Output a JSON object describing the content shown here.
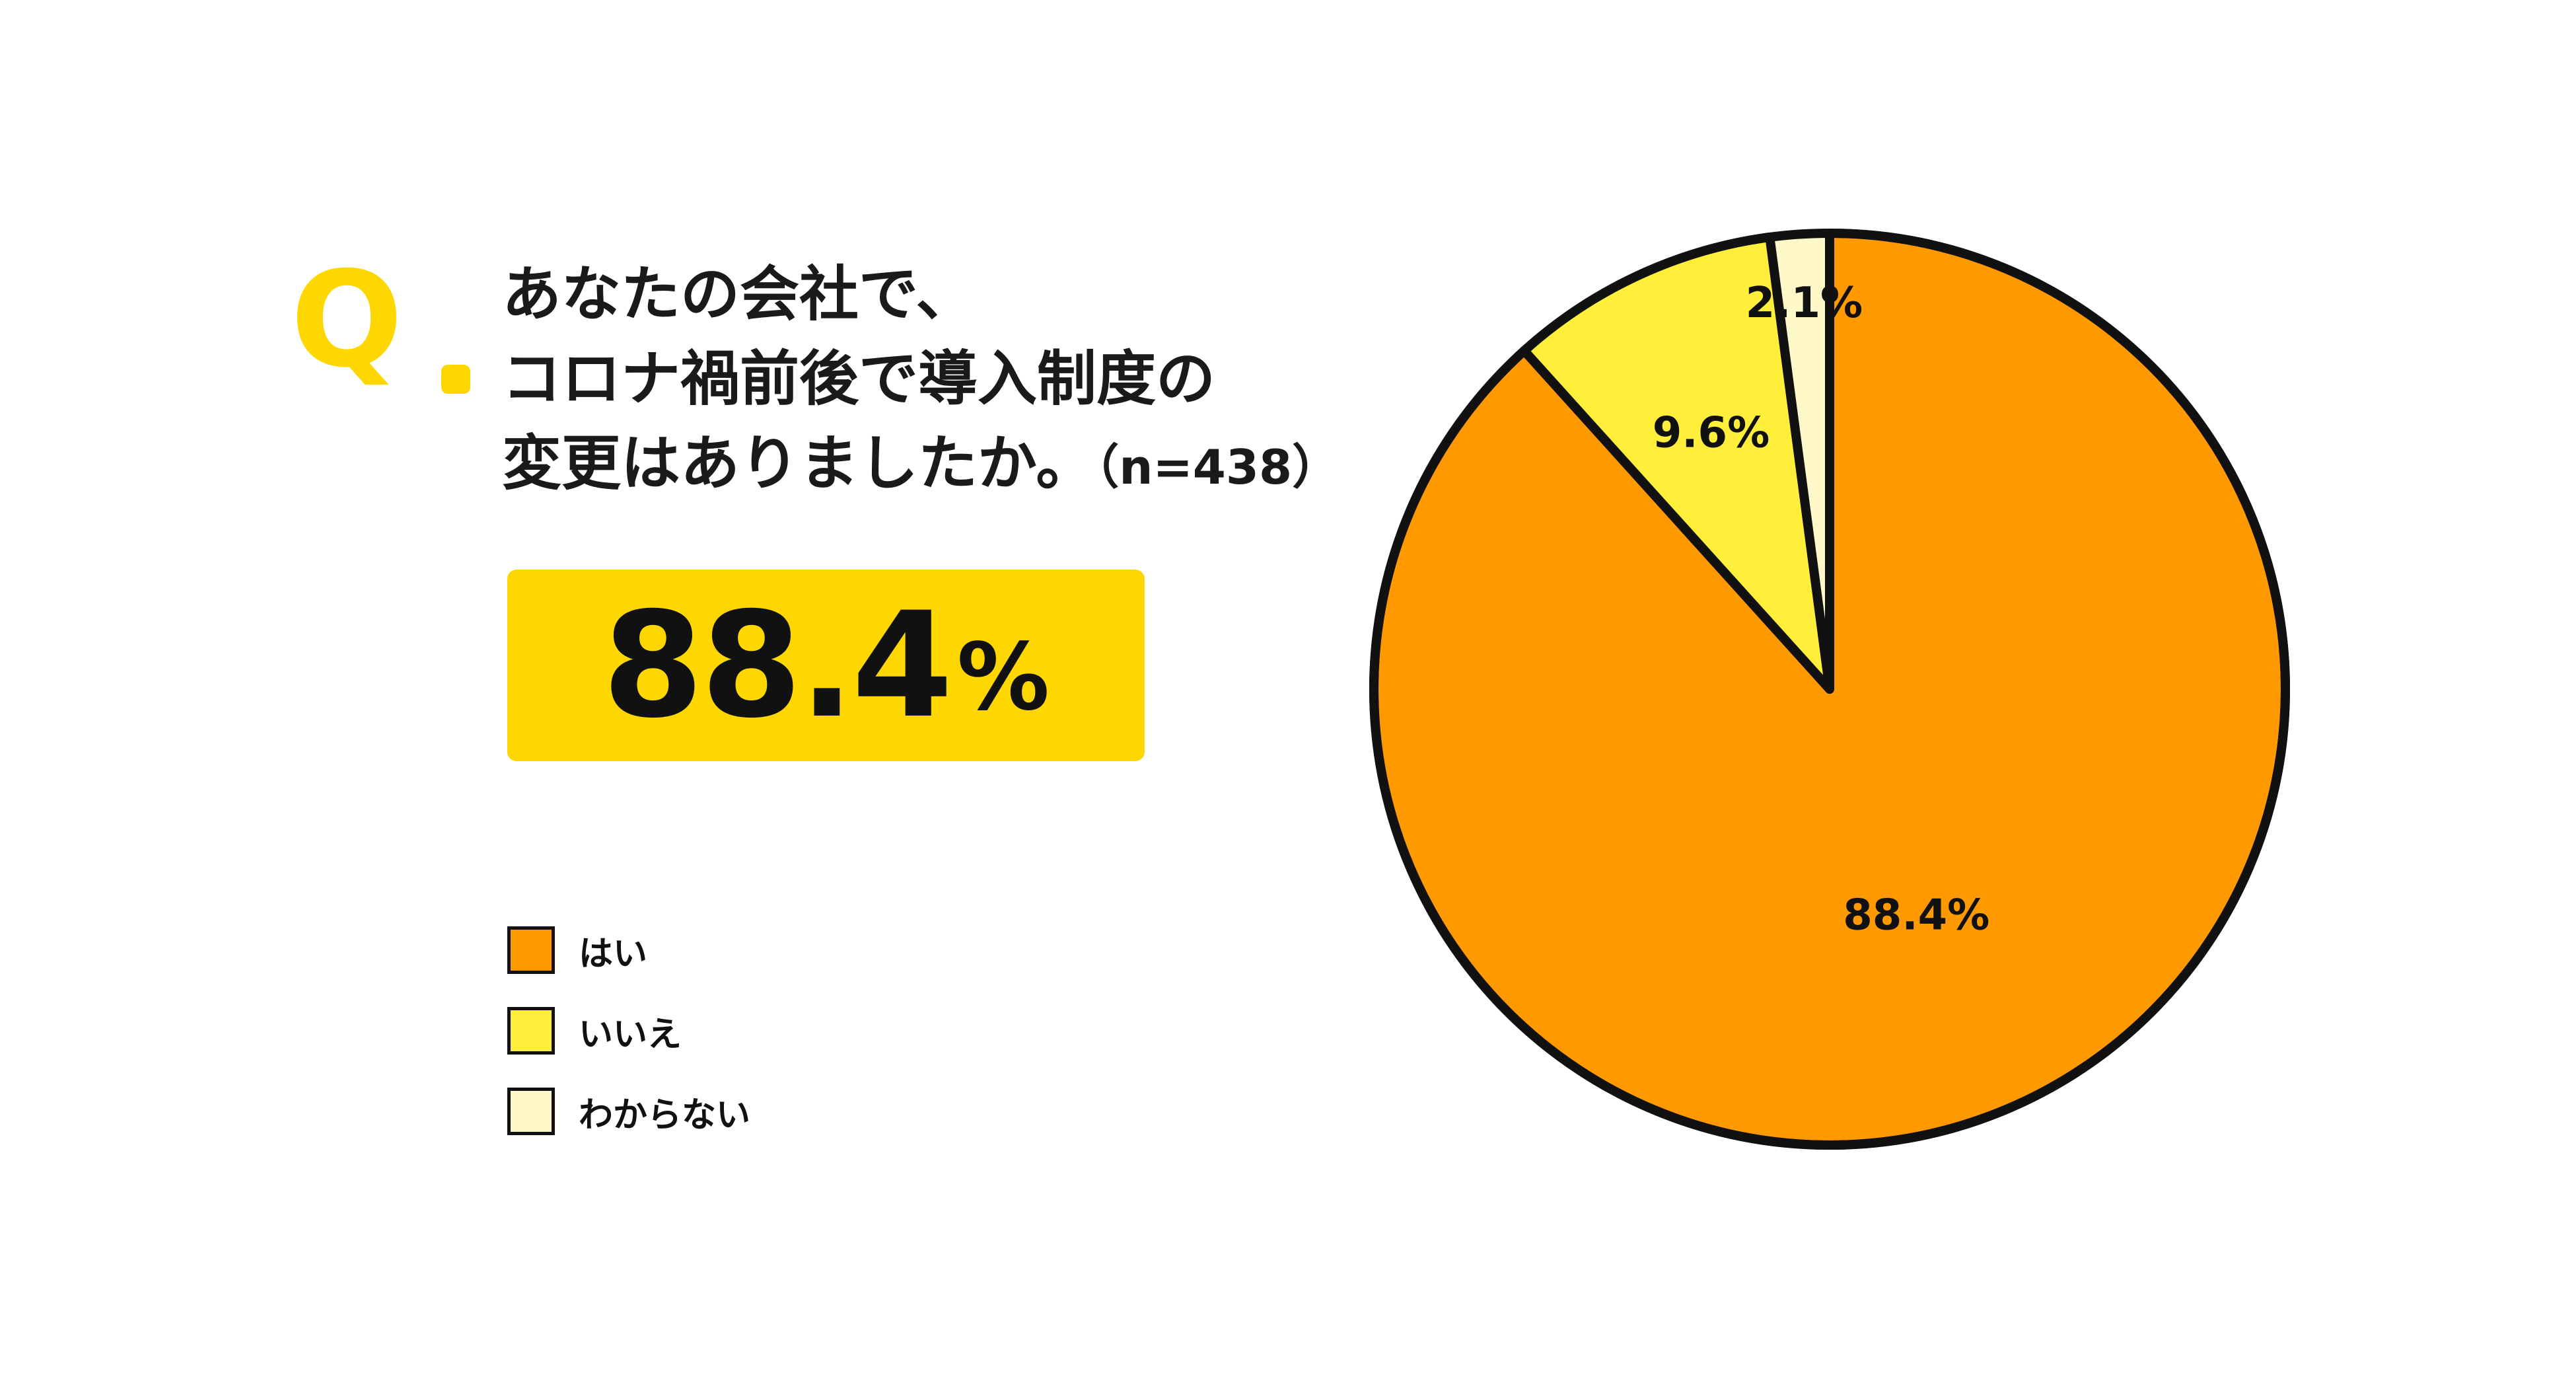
{
  "question": {
    "mark": "Q",
    "line1": "あなたの会社で、",
    "line2": "コロナ禍前後で導入制度の",
    "line3": "変更はありましたか。",
    "sample": "（n=438）"
  },
  "highlight": {
    "value": "88.4",
    "unit": "%"
  },
  "colors": {
    "accent": "#FFD700",
    "yes": "#FF9900",
    "no": "#FFEE3A",
    "unknown": "#FFF9C9",
    "outline": "#111111"
  },
  "chart_data": {
    "type": "pie",
    "categories": [
      "はい",
      "いいえ",
      "わからない"
    ],
    "values": [
      88.4,
      9.6,
      2.1
    ],
    "data_labels": [
      "88.4%",
      "9.6%",
      "2.1%"
    ],
    "colors": [
      "#FF9900",
      "#FFEE3A",
      "#FFF9C9"
    ],
    "legend_position": "bottom-left",
    "start_angle": "12 o'clock",
    "direction": "clockwise"
  }
}
